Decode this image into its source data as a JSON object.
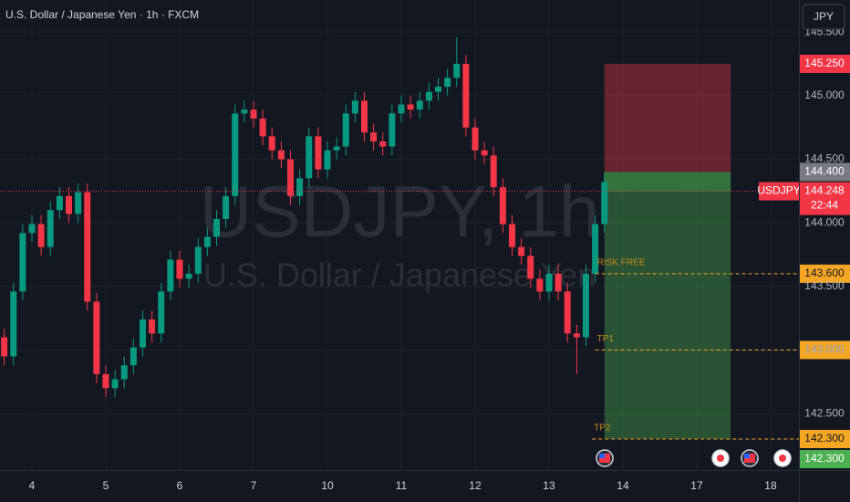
{
  "chart_data": {
    "type": "candlestick",
    "title": "U.S. Dollar / Japanese Yen · 1h · FXCM",
    "watermark": "USDJPY, 1h",
    "watermark_subtitle": "U.S. Dollar / Japanese Yen",
    "currency": "JPY",
    "up_color": "#089981",
    "down_color": "#f23645",
    "x": [
      -9,
      -6,
      -3,
      0,
      3,
      6,
      9,
      12,
      15,
      18,
      21,
      24,
      27,
      30,
      33,
      36,
      39,
      42,
      45,
      48,
      51,
      54,
      57,
      60,
      63,
      66,
      69,
      72,
      75,
      78,
      81,
      84,
      87,
      90,
      93,
      96,
      99,
      102,
      105,
      108,
      111,
      114,
      117,
      120,
      123,
      126,
      129,
      132,
      135,
      138,
      141,
      144,
      147,
      150,
      153,
      156,
      159,
      162,
      165,
      168,
      171,
      174,
      177,
      180,
      183,
      186
    ],
    "open": [
      143.1,
      142.95,
      143.46,
      143.92,
      143.99,
      143.81,
      144.1,
      144.21,
      144.07,
      144.24,
      143.38,
      142.81,
      142.7,
      142.77,
      142.88,
      143.02,
      143.24,
      143.13,
      143.46,
      143.71,
      143.56,
      143.6,
      143.81,
      143.89,
      144.03,
      144.21,
      144.86,
      144.89,
      144.82,
      144.68,
      144.57,
      144.5,
      144.21,
      144.35,
      144.68,
      144.42,
      144.57,
      144.6,
      144.86,
      144.96,
      144.71,
      144.64,
      144.6,
      144.86,
      144.93,
      144.89,
      144.96,
      145.03,
      145.07,
      145.14,
      145.25,
      144.75,
      144.57,
      144.53,
      144.28,
      143.99,
      143.81,
      143.74,
      143.56,
      143.46,
      143.6,
      143.46,
      143.13,
      143.1,
      143.6,
      143.99
    ],
    "high": [
      143.17,
      143.53,
      143.99,
      144.06,
      144.06,
      144.17,
      144.28,
      144.28,
      144.31,
      144.31,
      143.45,
      142.88,
      142.84,
      142.95,
      143.09,
      143.31,
      143.31,
      143.53,
      143.78,
      143.78,
      143.67,
      143.88,
      143.96,
      144.1,
      144.28,
      144.93,
      144.96,
      144.96,
      144.89,
      144.75,
      144.64,
      144.57,
      144.42,
      144.75,
      144.75,
      144.64,
      144.67,
      144.93,
      145.03,
      145.03,
      144.78,
      144.71,
      144.93,
      145.0,
      145.0,
      145.03,
      145.1,
      145.14,
      145.21,
      145.46,
      145.32,
      144.82,
      144.64,
      144.6,
      144.35,
      144.06,
      143.88,
      143.81,
      143.63,
      143.67,
      143.67,
      143.53,
      143.2,
      143.67,
      144.06,
      144.39
    ],
    "low": [
      142.88,
      142.88,
      143.39,
      143.85,
      143.74,
      143.74,
      144.03,
      144.0,
      144.0,
      143.31,
      142.74,
      142.63,
      142.63,
      142.7,
      142.81,
      142.95,
      143.06,
      143.06,
      143.39,
      143.49,
      143.49,
      143.53,
      143.74,
      143.82,
      143.96,
      144.14,
      144.79,
      144.75,
      144.61,
      144.5,
      144.43,
      144.14,
      144.14,
      144.28,
      144.35,
      144.35,
      144.5,
      144.53,
      144.79,
      144.64,
      144.57,
      144.53,
      144.53,
      144.79,
      144.82,
      144.82,
      144.89,
      144.96,
      145.0,
      145.07,
      144.68,
      144.5,
      144.46,
      144.21,
      143.92,
      143.74,
      143.67,
      143.49,
      143.39,
      143.39,
      143.39,
      143.06,
      142.81,
      143.03,
      143.53,
      143.92
    ],
    "close": [
      142.95,
      143.46,
      143.92,
      143.99,
      143.81,
      144.1,
      144.21,
      144.07,
      144.24,
      143.38,
      142.81,
      142.7,
      142.77,
      142.88,
      143.02,
      143.24,
      143.13,
      143.46,
      143.71,
      143.56,
      143.6,
      143.81,
      143.89,
      144.03,
      144.21,
      144.86,
      144.89,
      144.82,
      144.68,
      144.57,
      144.5,
      144.21,
      144.35,
      144.68,
      144.42,
      144.57,
      144.6,
      144.86,
      144.96,
      144.71,
      144.64,
      144.6,
      144.86,
      144.93,
      144.89,
      144.96,
      145.03,
      145.07,
      145.14,
      145.25,
      144.75,
      144.57,
      144.53,
      144.28,
      143.99,
      143.81,
      143.74,
      143.56,
      143.46,
      143.6,
      143.46,
      143.13,
      143.1,
      143.6,
      143.99,
      144.32
    ],
    "xlim": [
      -10.37,
      249.19
    ],
    "xticks": [
      {
        "value": 0,
        "label": "4"
      },
      {
        "value": 24,
        "label": "5"
      },
      {
        "value": 48,
        "label": "6"
      },
      {
        "value": 72,
        "label": "7"
      },
      {
        "value": 96,
        "label": "10"
      },
      {
        "value": 120,
        "label": "11"
      },
      {
        "value": 144,
        "label": "12"
      },
      {
        "value": 168,
        "label": "13"
      },
      {
        "value": 192,
        "label": "14"
      },
      {
        "value": 216,
        "label": "17"
      },
      {
        "value": 240,
        "label": "18"
      }
    ],
    "ylim": [
      142.056,
      145.752
    ],
    "yticks": [
      {
        "value": 145.5,
        "label": "145.500"
      },
      {
        "value": 145,
        "label": "145.000"
      },
      {
        "value": 144.5,
        "label": "144.500"
      },
      {
        "value": 144,
        "label": "144.000"
      },
      {
        "value": 143.5,
        "label": "143.500"
      },
      {
        "value": 143,
        "label": "143.000"
      },
      {
        "value": 142.5,
        "label": "142.500"
      }
    ],
    "grid": true,
    "position": {
      "start": 186,
      "end": 227,
      "stop": 145.25,
      "stop_label": "145.250",
      "entry": 144.4,
      "entry_label": "144.400",
      "target": 142.3,
      "target_label": "142.300"
    },
    "levels": [
      {
        "name": "RISK FREE",
        "value": 143.6,
        "label": "143.600",
        "start": 183
      },
      {
        "name": "TP1",
        "value": 143.0,
        "label": "143.000",
        "start": 183
      },
      {
        "name": "TP2",
        "value": 142.3,
        "label": "142.300",
        "start": 182
      }
    ],
    "last_price": {
      "symbol": "USDJPY",
      "value": 144.248,
      "label": "144.248",
      "countdown": "22:44"
    }
  }
}
